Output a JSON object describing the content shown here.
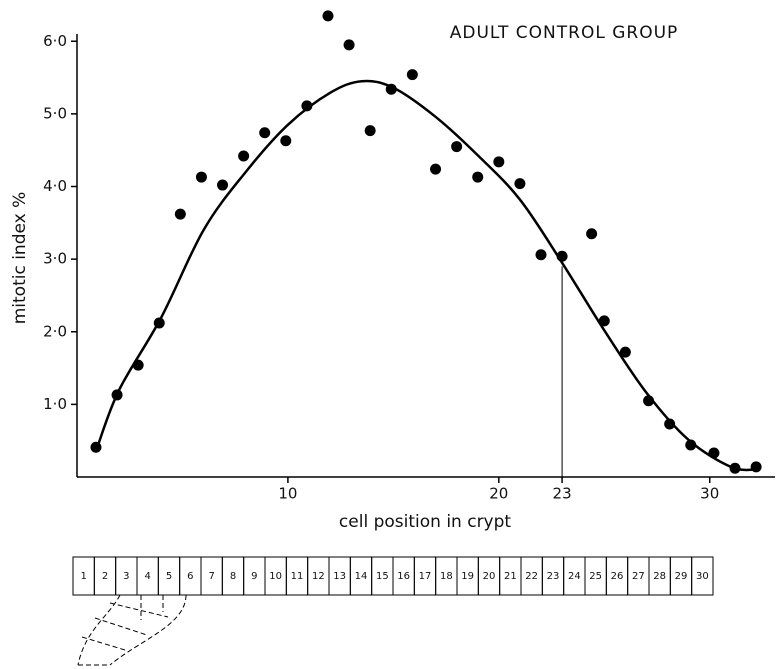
{
  "chart_data": {
    "type": "scatter",
    "title": "ADULT CONTROL GROUP",
    "x_label": "cell position in crypt",
    "y_label": "mitotic index %",
    "xlim": [
      0,
      33
    ],
    "ylim": [
      0,
      6.1
    ],
    "xticks": [
      10,
      20,
      23,
      30
    ],
    "yticks": [
      {
        "value": 1,
        "label": "1·0"
      },
      {
        "value": 2,
        "label": "2·0"
      },
      {
        "value": 3,
        "label": "3·0"
      },
      {
        "value": 4,
        "label": "4·0"
      },
      {
        "value": 5,
        "label": "5·0"
      },
      {
        "value": 6,
        "label": "6·0"
      }
    ],
    "reference_line": {
      "x": 23,
      "y": 2.9
    },
    "series": [
      {
        "type": "scatter",
        "color": "#000000",
        "x": [
          0.9,
          1.9,
          2.9,
          3.9,
          4.9,
          5.9,
          6.9,
          7.9,
          8.9,
          9.9,
          10.9,
          11.9,
          12.9,
          13.9,
          14.9,
          15.9,
          17.0,
          18.0,
          19.0,
          20.0,
          21.0,
          22.0,
          23.0,
          24.4,
          25.0,
          26.0,
          27.1,
          28.1,
          29.1,
          30.2,
          31.2,
          32.2
        ],
        "values": [
          0.41,
          1.13,
          1.54,
          2.12,
          3.62,
          4.13,
          4.02,
          4.42,
          4.74,
          4.63,
          5.11,
          6.35,
          5.95,
          4.77,
          5.34,
          5.54,
          4.24,
          4.55,
          4.13,
          4.34,
          4.04,
          3.06,
          3.04,
          3.35,
          2.15,
          1.72,
          1.05,
          0.73,
          0.44,
          0.33,
          0.12,
          0.14
        ]
      },
      {
        "type": "line",
        "color": "#000000",
        "x": [
          0.95,
          2,
          4,
          6,
          8,
          10,
          12,
          13.5,
          15,
          17,
          19,
          21,
          23,
          25,
          27,
          29,
          31,
          32.2
        ],
        "values": [
          0.4,
          1.2,
          2.2,
          3.4,
          4.2,
          4.85,
          5.29,
          5.45,
          5.36,
          4.96,
          4.43,
          3.82,
          2.95,
          2.02,
          1.16,
          0.51,
          0.14,
          0.1
        ]
      }
    ]
  },
  "crypt_diagram": {
    "cells": [
      "1",
      "2",
      "3",
      "4",
      "5",
      "6",
      "7",
      "8",
      "9",
      "10",
      "11",
      "12",
      "13",
      "14",
      "15",
      "16",
      "17",
      "18",
      "19",
      "20",
      "21",
      "22",
      "23",
      "24",
      "25",
      "26",
      "27",
      "28",
      "29",
      "30"
    ]
  }
}
